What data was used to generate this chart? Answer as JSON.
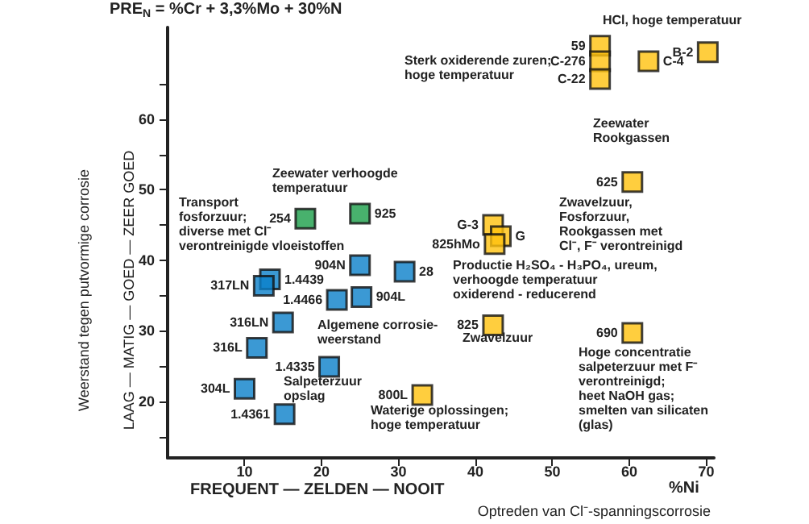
{
  "chart_data": {
    "type": "scatter",
    "title": "PRE$_{N}$ = %Cr + 3,3%Mo + 30%N",
    "xlabel": "%Ni",
    "ylabel": "Weerstand tegen putvormige corrosie",
    "xlim": [
      0,
      71
    ],
    "xticks": [
      10,
      20,
      30,
      40,
      50,
      60,
      70
    ],
    "ylim": [
      12,
      73
    ],
    "yticks": [
      {
        "value": 15,
        "label": null
      },
      20,
      {
        "value": 25,
        "label": null
      },
      30,
      {
        "value": 35,
        "label": null
      },
      40,
      {
        "value": 45,
        "label": null
      },
      50,
      {
        "value": 55,
        "label": null
      },
      60,
      {
        "value": 65,
        "label": null
      }
    ],
    "marker": "square",
    "grid": false,
    "series": [
      {
        "color": "#1a9e48",
        "x": [
          17.9,
          25
        ],
        "values": [
          45.9,
          46.6
        ]
      },
      {
        "color": "#0a7fc9",
        "x": [
          13.3,
          12.5,
          22,
          25.2,
          25,
          30.8,
          15,
          11.6,
          10,
          21,
          15.2
        ],
        "values": [
          37.3,
          36.4,
          34.4,
          34.8,
          39.3,
          38.4,
          31.2,
          27.6,
          21.8,
          24.9,
          18.2
        ]
      },
      {
        "color": "#ffc20e",
        "x": [
          33.1,
          42.3,
          60.4,
          60.4,
          42.3,
          43.3,
          42.5,
          56.2,
          56.2,
          56.2,
          62.5,
          70.2
        ],
        "values": [
          20.9,
          30.8,
          29.7,
          51.1,
          45,
          43.4,
          42.3,
          70.4,
          68.2,
          65.7,
          68.2,
          69.5
        ]
      }
    ],
    "annotations": [
      "LAAG — MATIG — GOED — ZEER GOED",
      "FREQUENT — ZELDEN — NOOIT",
      "Optreden van Cl⁻-spanningscorrosie",
      "HCl, hoge temperatuur",
      "Sterk oxiderende zuren;\nhoge temperatuur",
      "Zeewater\nRookgassen",
      "Zeewater verhoogde\ntemperatuur",
      "Transport\nfosforzuur;\ndiverse met Cl⁻\nverontreinigde vloeistoffen",
      "Zwavelzuur,\nFosforzuur,\nRookgassen met\nCl⁻, F⁻ verontreinigd",
      "Productie H₂SO₄ - H₃PO₄, ureum,\nverhoogde temperatuur\noxiderend - reducerend",
      "Algemene corrosie-\nweerstand",
      "Zwavelzuur",
      "Salpeterzuur\nopslag",
      "Waterige oplossingen;\nhoge temperatuur",
      "Hoge concentratie\nsalpeterzuur met F⁻\nverontreinigd;\nheet NaOH gas;\nsmelten van silicaten\n(glas)",
      {
        "text": "254",
        "x": 17.9,
        "y": 45.9
      },
      {
        "text": "925",
        "x": 25,
        "y": 46.6
      },
      {
        "text": "1.4439",
        "x": 13.3,
        "y": 37.3
      },
      {
        "text": "317LN",
        "x": 12.5,
        "y": 36.4
      },
      {
        "text": "1.4466",
        "x": 22,
        "y": 34.4
      },
      {
        "text": "904L",
        "x": 25.2,
        "y": 34.8
      },
      {
        "text": "904N",
        "x": 25,
        "y": 39.3
      },
      {
        "text": "28",
        "x": 30.8,
        "y": 38.4
      },
      {
        "text": "316LN",
        "x": 15,
        "y": 31.2
      },
      {
        "text": "316L",
        "x": 11.6,
        "y": 27.6
      },
      {
        "text": "304L",
        "x": 10,
        "y": 21.8
      },
      {
        "text": "1.4335",
        "x": 21,
        "y": 24.9
      },
      {
        "text": "1.4361",
        "x": 15.2,
        "y": 18.2
      },
      {
        "text": "800L",
        "x": 33.1,
        "y": 20.9
      },
      {
        "text": "825",
        "x": 42.3,
        "y": 30.8
      },
      {
        "text": "690",
        "x": 60.4,
        "y": 29.7
      },
      {
        "text": "625",
        "x": 60.4,
        "y": 51.1
      },
      {
        "text": "G-3",
        "x": 42.3,
        "y": 45
      },
      {
        "text": "G",
        "x": 43.3,
        "y": 43.4
      },
      {
        "text": "825hMo",
        "x": 42.5,
        "y": 42.3
      },
      {
        "text": "59",
        "x": 56.2,
        "y": 70.4
      },
      {
        "text": "C-276",
        "x": 56.2,
        "y": 68.2
      },
      {
        "text": "C-22",
        "x": 56.2,
        "y": 65.7
      },
      {
        "text": "C-4",
        "x": 62.5,
        "y": 68.2
      },
      {
        "text": "B-2",
        "x": 70.2,
        "y": 69.5
      }
    ]
  }
}
